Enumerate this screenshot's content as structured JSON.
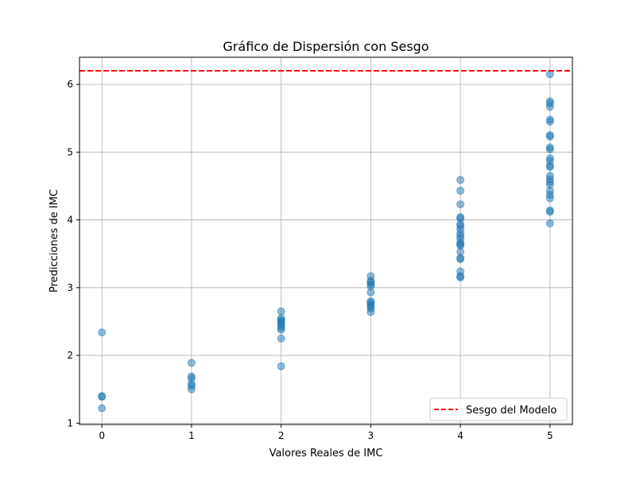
{
  "chart_data": {
    "type": "scatter",
    "title": "Gráfico de Dispersión con Sesgo",
    "xlabel": "Valores Reales de IMC",
    "ylabel": "Predicciones de IMC",
    "xlim": [
      -0.25,
      5.25
    ],
    "ylim": [
      0.98,
      6.4
    ],
    "xticks": [
      0,
      1,
      2,
      3,
      4,
      5
    ],
    "yticks": [
      1,
      2,
      3,
      4,
      5,
      6
    ],
    "grid": true,
    "legend_position": "lower-right",
    "point_color": "#1f77b4",
    "series": [
      {
        "points": [
          [
            0,
            2.34
          ],
          [
            0,
            1.4
          ],
          [
            0,
            1.39
          ],
          [
            0,
            1.22
          ],
          [
            1,
            1.89
          ],
          [
            1,
            1.69
          ],
          [
            1,
            1.66
          ],
          [
            1,
            1.58
          ],
          [
            1,
            1.55
          ],
          [
            1,
            1.5
          ],
          [
            2,
            2.65
          ],
          [
            2,
            2.55
          ],
          [
            2,
            2.52
          ],
          [
            2,
            2.5
          ],
          [
            2,
            2.47
          ],
          [
            2,
            2.44
          ],
          [
            2,
            2.41
          ],
          [
            2,
            2.38
          ],
          [
            2,
            2.25
          ],
          [
            2,
            1.84
          ],
          [
            3,
            3.17
          ],
          [
            3,
            3.1
          ],
          [
            3,
            3.08
          ],
          [
            3,
            3.05
          ],
          [
            3,
            3.02
          ],
          [
            3,
            2.93
          ],
          [
            3,
            2.8
          ],
          [
            3,
            2.78
          ],
          [
            3,
            2.75
          ],
          [
            3,
            2.72
          ],
          [
            3,
            2.69
          ],
          [
            3,
            2.64
          ],
          [
            4,
            4.59
          ],
          [
            4,
            4.43
          ],
          [
            4,
            4.23
          ],
          [
            4,
            4.04
          ],
          [
            4,
            4.02
          ],
          [
            4,
            3.94
          ],
          [
            4,
            3.91
          ],
          [
            4,
            3.86
          ],
          [
            4,
            3.8
          ],
          [
            4,
            3.76
          ],
          [
            4,
            3.72
          ],
          [
            4,
            3.66
          ],
          [
            4,
            3.64
          ],
          [
            4,
            3.62
          ],
          [
            4,
            3.53
          ],
          [
            4,
            3.44
          ],
          [
            4,
            3.42
          ],
          [
            4,
            3.24
          ],
          [
            4,
            3.17
          ],
          [
            4,
            3.15
          ],
          [
            5,
            6.15
          ],
          [
            5,
            5.75
          ],
          [
            5,
            5.72
          ],
          [
            5,
            5.67
          ],
          [
            5,
            5.48
          ],
          [
            5,
            5.45
          ],
          [
            5,
            5.25
          ],
          [
            5,
            5.23
          ],
          [
            5,
            5.07
          ],
          [
            5,
            5.04
          ],
          [
            5,
            4.91
          ],
          [
            5,
            4.87
          ],
          [
            5,
            4.8
          ],
          [
            5,
            4.78
          ],
          [
            5,
            4.65
          ],
          [
            5,
            4.6
          ],
          [
            5,
            4.56
          ],
          [
            5,
            4.52
          ],
          [
            5,
            4.43
          ],
          [
            5,
            4.37
          ],
          [
            5,
            4.32
          ],
          [
            5,
            4.14
          ],
          [
            5,
            4.12
          ],
          [
            5,
            3.95
          ]
        ]
      }
    ],
    "bias_line": {
      "name": "Sesgo del Modelo",
      "y": 6.2,
      "color": "#ff0000",
      "style": "dashed"
    }
  }
}
